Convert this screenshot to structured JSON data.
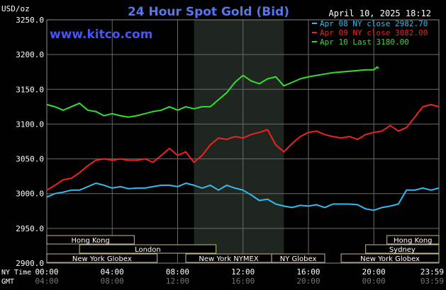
{
  "chart_data": {
    "type": "line",
    "title": "24 Hour Spot Gold (Bid)",
    "date_label": "April 10, 2025 18:12",
    "source": "www.kitco.com",
    "ylabel": "USD/oz",
    "ylim": [
      2900,
      3250
    ],
    "y_ticks": [
      "3250.0",
      "3200.0",
      "3150.0",
      "3100.0",
      "3050.0",
      "3000.0",
      "2950.0",
      "2900.0"
    ],
    "x_ticks_ny": [
      "00:00",
      "04:00",
      "08:00",
      "12:00",
      "16:00",
      "20:00",
      "23:59"
    ],
    "x_ticks_gmt": [
      "04:00",
      "08:00",
      "12:00",
      "16:00",
      "20:00",
      "00:00",
      "03:59"
    ],
    "x_axis_label_ny": "NY Time",
    "x_axis_label_gmt": "GMT",
    "grid": true,
    "legend_position": "top-right",
    "highlight_session": {
      "start_hour": 9,
      "end_hour": 14.5
    },
    "series": [
      {
        "name": "Apr 08 NY close 2982.70",
        "color": "#33bbee",
        "points": [
          [
            0,
            2995
          ],
          [
            0.5,
            3000
          ],
          [
            1,
            3002
          ],
          [
            1.5,
            3005
          ],
          [
            2,
            3005
          ],
          [
            2.5,
            3010
          ],
          [
            3,
            3015
          ],
          [
            3.5,
            3012
          ],
          [
            4,
            3008
          ],
          [
            4.5,
            3010
          ],
          [
            5,
            3007
          ],
          [
            5.5,
            3008
          ],
          [
            6,
            3008
          ],
          [
            6.5,
            3010
          ],
          [
            7,
            3012
          ],
          [
            7.5,
            3012
          ],
          [
            8,
            3010
          ],
          [
            8.5,
            3015
          ],
          [
            9,
            3012
          ],
          [
            9.5,
            3008
          ],
          [
            10,
            3012
          ],
          [
            10.5,
            3005
          ],
          [
            11,
            3012
          ],
          [
            11.5,
            3008
          ],
          [
            12,
            3005
          ],
          [
            12.5,
            2998
          ],
          [
            13,
            2990
          ],
          [
            13.5,
            2992
          ],
          [
            14,
            2985
          ],
          [
            14.5,
            2982
          ],
          [
            15,
            2980
          ],
          [
            15.5,
            2983
          ],
          [
            16,
            2982
          ],
          [
            16.5,
            2984
          ],
          [
            17,
            2980
          ],
          [
            17.5,
            2985
          ],
          [
            18,
            2985
          ],
          [
            18.5,
            2985
          ],
          [
            19,
            2984
          ],
          [
            19.5,
            2978
          ],
          [
            20,
            2976
          ],
          [
            20.5,
            2980
          ],
          [
            21,
            2982
          ],
          [
            21.5,
            2985
          ],
          [
            22,
            3005
          ],
          [
            22.5,
            3005
          ],
          [
            23,
            3008
          ],
          [
            23.5,
            3005
          ],
          [
            23.98,
            3008
          ]
        ]
      },
      {
        "name": "Apr 09 NY close 3082.00",
        "color": "#ee2222",
        "points": [
          [
            0,
            3005
          ],
          [
            0.5,
            3012
          ],
          [
            1,
            3020
          ],
          [
            1.5,
            3022
          ],
          [
            2,
            3030
          ],
          [
            2.5,
            3040
          ],
          [
            3,
            3048
          ],
          [
            3.5,
            3050
          ],
          [
            4,
            3048
          ],
          [
            4.5,
            3050
          ],
          [
            5,
            3048
          ],
          [
            5.5,
            3048
          ],
          [
            6,
            3050
          ],
          [
            6.5,
            3045
          ],
          [
            7,
            3055
          ],
          [
            7.5,
            3065
          ],
          [
            8,
            3055
          ],
          [
            8.5,
            3060
          ],
          [
            9,
            3045
          ],
          [
            9.5,
            3055
          ],
          [
            10,
            3070
          ],
          [
            10.5,
            3080
          ],
          [
            11,
            3078
          ],
          [
            11.5,
            3082
          ],
          [
            12,
            3080
          ],
          [
            12.5,
            3085
          ],
          [
            13,
            3088
          ],
          [
            13.5,
            3092
          ],
          [
            14,
            3070
          ],
          [
            14.5,
            3060
          ],
          [
            15,
            3072
          ],
          [
            15.5,
            3082
          ],
          [
            16,
            3088
          ],
          [
            16.5,
            3090
          ],
          [
            17,
            3085
          ],
          [
            17.5,
            3082
          ],
          [
            18,
            3080
          ],
          [
            18.5,
            3082
          ],
          [
            19,
            3078
          ],
          [
            19.5,
            3085
          ],
          [
            20,
            3088
          ],
          [
            20.5,
            3090
          ],
          [
            21,
            3098
          ],
          [
            21.5,
            3090
          ],
          [
            22,
            3095
          ],
          [
            22.5,
            3110
          ],
          [
            23,
            3125
          ],
          [
            23.5,
            3128
          ],
          [
            23.98,
            3125
          ]
        ]
      },
      {
        "name": "Apr 10 Last 3180.00",
        "color": "#33dd33",
        "points": [
          [
            0,
            3128
          ],
          [
            0.5,
            3125
          ],
          [
            1,
            3120
          ],
          [
            1.5,
            3125
          ],
          [
            2,
            3130
          ],
          [
            2.5,
            3120
          ],
          [
            3,
            3118
          ],
          [
            3.5,
            3112
          ],
          [
            4,
            3115
          ],
          [
            4.5,
            3112
          ],
          [
            5,
            3110
          ],
          [
            5.5,
            3112
          ],
          [
            6,
            3115
          ],
          [
            6.5,
            3118
          ],
          [
            7,
            3120
          ],
          [
            7.5,
            3125
          ],
          [
            8,
            3120
          ],
          [
            8.5,
            3125
          ],
          [
            9,
            3122
          ],
          [
            9.5,
            3125
          ],
          [
            10,
            3125
          ],
          [
            10.5,
            3135
          ],
          [
            11,
            3145
          ],
          [
            11.5,
            3160
          ],
          [
            12,
            3170
          ],
          [
            12.5,
            3162
          ],
          [
            13,
            3158
          ],
          [
            13.5,
            3165
          ],
          [
            14,
            3168
          ],
          [
            14.5,
            3155
          ],
          [
            15,
            3160
          ],
          [
            15.5,
            3165
          ],
          [
            16,
            3168
          ],
          [
            16.5,
            3170
          ],
          [
            17,
            3172
          ],
          [
            17.5,
            3174
          ],
          [
            18,
            3175
          ],
          [
            18.5,
            3176
          ],
          [
            19,
            3177
          ],
          [
            19.5,
            3178
          ],
          [
            20,
            3178
          ],
          [
            20.2,
            3182
          ],
          [
            20.3,
            3180
          ]
        ]
      }
    ],
    "sessions": [
      {
        "name": "Hong Kong",
        "start": 0,
        "end": 5.35
      },
      {
        "name": "Hong Kong",
        "start": 20.8,
        "end": 23.98
      },
      {
        "name": "London",
        "start": 2,
        "end": 10.35
      },
      {
        "name": "Sydney",
        "start": 19.5,
        "end": 23.98
      },
      {
        "name": "New York Globex",
        "start": 0,
        "end": 6.75
      },
      {
        "name": "New York NYMEX",
        "start": 8.5,
        "end": 13.75
      },
      {
        "name": "NY Globex",
        "start": 13.75,
        "end": 17
      },
      {
        "name": "New York Globex",
        "start": 18,
        "end": 23.98
      }
    ],
    "session_rows": [
      0,
      0,
      1,
      1,
      2,
      2,
      2,
      2
    ]
  }
}
